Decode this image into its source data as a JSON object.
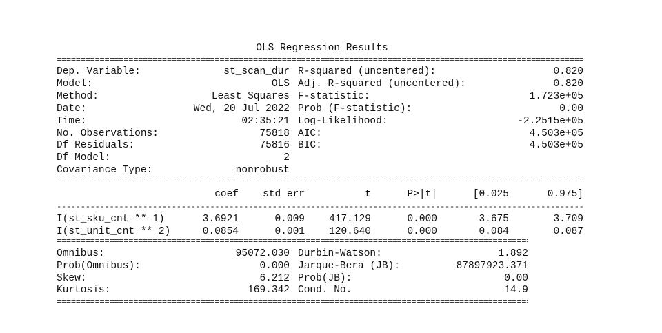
{
  "title": "OLS Regression Results",
  "top_table": [
    {
      "left_label": "Dep. Variable:",
      "left_value": "st_scan_dur",
      "right_label": "R-squared (uncentered):",
      "right_value": "0.820"
    },
    {
      "left_label": "Model:",
      "left_value": "OLS",
      "right_label": "Adj. R-squared (uncentered):",
      "right_value": "0.820"
    },
    {
      "left_label": "Method:",
      "left_value": "Least Squares",
      "right_label": "F-statistic:",
      "right_value": "1.723e+05"
    },
    {
      "left_label": "Date:",
      "left_value": "Wed, 20 Jul 2022",
      "right_label": "Prob (F-statistic):",
      "right_value": "0.00"
    },
    {
      "left_label": "Time:",
      "left_value": "02:35:21",
      "right_label": "Log-Likelihood:",
      "right_value": "-2.2515e+05"
    },
    {
      "left_label": "No. Observations:",
      "left_value": "75818",
      "right_label": "AIC:",
      "right_value": "4.503e+05"
    },
    {
      "left_label": "Df Residuals:",
      "left_value": "75816",
      "right_label": "BIC:",
      "right_value": "4.503e+05"
    },
    {
      "left_label": "Df Model:",
      "left_value": "2",
      "right_label": "",
      "right_value": ""
    },
    {
      "left_label": "Covariance Type:",
      "left_value": "nonrobust",
      "right_label": "",
      "right_value": ""
    }
  ],
  "coef_table": {
    "headers": [
      "",
      "coef",
      "std err",
      "t",
      "P>|t|",
      "[0.025",
      "0.975]"
    ],
    "rows": [
      [
        "I(st_sku_cnt ** 1)",
        "3.6921",
        "0.009",
        "417.129",
        "0.000",
        "3.675",
        "3.709"
      ],
      [
        "I(st_unit_cnt ** 2)",
        "0.0854",
        "0.001",
        "120.640",
        "0.000",
        "0.084",
        "0.087"
      ]
    ]
  },
  "diag_table": [
    {
      "left_label": "Omnibus:",
      "left_value": "95072.030",
      "right_label": "Durbin-Watson:",
      "right_value": "1.892"
    },
    {
      "left_label": "Prob(Omnibus):",
      "left_value": "0.000",
      "right_label": "Jarque-Bera (JB):",
      "right_value": "87897923.371"
    },
    {
      "left_label": "Skew:",
      "left_value": "6.212",
      "right_label": "Prob(JB):",
      "right_value": "0.00"
    },
    {
      "left_label": "Kurtosis:",
      "left_value": "169.342",
      "right_label": "Cond. No.",
      "right_value": "14.9"
    }
  ]
}
